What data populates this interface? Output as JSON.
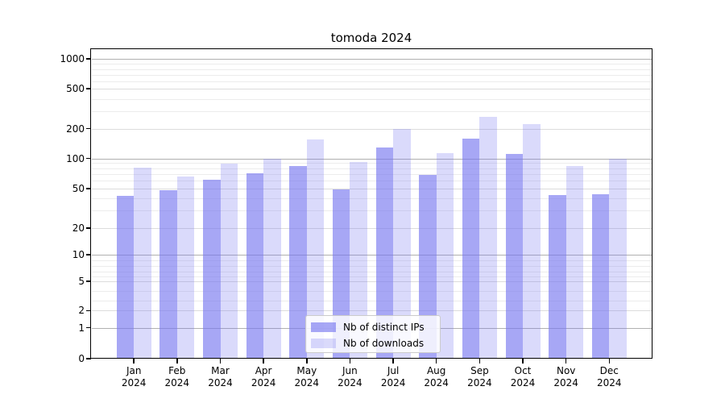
{
  "chart_data": {
    "type": "bar",
    "title": "tomoda 2024",
    "categories": [
      "Jan 2024",
      "Feb 2024",
      "Mar 2024",
      "Apr 2024",
      "May 2024",
      "Jun 2024",
      "Jul 2024",
      "Aug 2024",
      "Sep 2024",
      "Oct 2024",
      "Nov 2024",
      "Dec 2024"
    ],
    "series": [
      {
        "name": "Nb of distinct IPs",
        "color": "rgba(120,120,240,0.65)",
        "values": [
          42,
          48,
          61,
          71,
          84,
          49,
          128,
          68,
          157,
          112,
          43,
          44
        ]
      },
      {
        "name": "Nb of downloads",
        "color": "rgba(120,120,240,0.27)",
        "values": [
          81,
          65,
          88,
          100,
          155,
          92,
          197,
          113,
          265,
          223,
          84,
          100
        ]
      }
    ],
    "y_axis": {
      "scale": "log",
      "tick_labels": [
        "1000",
        "500",
        "200",
        "100",
        "50",
        "20",
        "10",
        "5",
        "2",
        "1",
        "0"
      ],
      "tick_values": [
        1000,
        500,
        200,
        100,
        50,
        20,
        10,
        5,
        2,
        1,
        0
      ]
    },
    "x_axis": {
      "tick_label_second_line": "2024"
    },
    "legend": {
      "position": "bottom-center",
      "entries": [
        "Nb of distinct IPs",
        "Nb of downloads"
      ]
    },
    "grid": true,
    "colors": {
      "background": "#ffffff",
      "axis": "#000000",
      "grid_major": "#b0b0b0",
      "grid_minor": "#ececec"
    }
  }
}
